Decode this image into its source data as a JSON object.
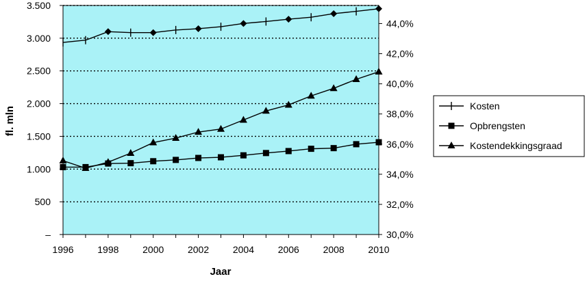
{
  "chart_data": {
    "type": "line",
    "title": "",
    "xlabel": "Jaar",
    "ylabel": "fl. mln",
    "x": [
      1996,
      1997,
      1998,
      1999,
      2000,
      2001,
      2002,
      2003,
      2004,
      2005,
      2006,
      2007,
      2008,
      2009,
      2010
    ],
    "x_ticks": [
      "1996",
      "1998",
      "2000",
      "2002",
      "2004",
      "2006",
      "2008",
      "2010"
    ],
    "y_ticks_left": [
      "–",
      "500",
      "1.000",
      "1.500",
      "2.000",
      "2.500",
      "3.000",
      "3.500"
    ],
    "y_ticks_right": [
      "30,0%",
      "32,0%",
      "34,0%",
      "36,0%",
      "38,0%",
      "40,0%",
      "42,0%",
      "44,0%"
    ],
    "ylim_left": [
      0,
      3500
    ],
    "ylim_right": [
      30,
      45.2
    ],
    "grid": "horizontal dotted",
    "legend_position": "right",
    "plot_background": "#aaf2f7",
    "series": [
      {
        "name": "Kosten",
        "axis": "left",
        "marker": "plus",
        "values": [
          2935,
          2970,
          3100,
          3085,
          3085,
          3125,
          3145,
          3175,
          3225,
          3255,
          3290,
          3320,
          3375,
          3410,
          3450
        ]
      },
      {
        "name": "Opbrengsten",
        "axis": "left",
        "marker": "square",
        "values": [
          1030,
          1030,
          1085,
          1090,
          1120,
          1140,
          1170,
          1180,
          1210,
          1245,
          1275,
          1310,
          1320,
          1380,
          1410
        ]
      },
      {
        "name": "Kostendekkingsgraad",
        "axis": "right",
        "marker": "triangle",
        "values": [
          34.9,
          34.4,
          34.8,
          35.4,
          36.1,
          36.4,
          36.8,
          37.0,
          37.6,
          38.2,
          38.6,
          39.2,
          39.7,
          40.3,
          40.8
        ]
      }
    ]
  }
}
